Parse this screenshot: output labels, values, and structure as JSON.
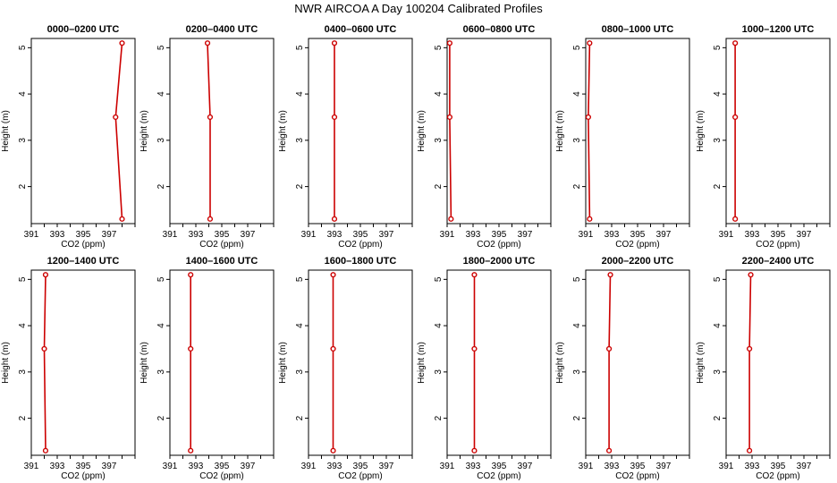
{
  "title": "NWR AIRCOA A  Day 100204  Calibrated Profiles",
  "chart_data": [
    {
      "type": "line",
      "title": "0000–0200 UTC",
      "xlabel": "CO2 (ppm)",
      "ylabel": "Height (m)",
      "xlim": [
        391,
        399
      ],
      "ylim": [
        1.2,
        5.2
      ],
      "x_ticks": [
        "391",
        "393",
        "395",
        "397"
      ],
      "y_ticks": [
        "2",
        "3",
        "4",
        "5"
      ],
      "series": [
        {
          "x": [
            398,
            397.5,
            398
          ],
          "y": [
            1.3,
            3.5,
            5.1
          ]
        }
      ]
    },
    {
      "type": "line",
      "title": "0200–0400 UTC",
      "xlabel": "CO2 (ppm)",
      "ylabel": "Height (m)",
      "xlim": [
        391,
        399
      ],
      "ylim": [
        1.2,
        5.2
      ],
      "x_ticks": [
        "391",
        "393",
        "395",
        "397"
      ],
      "y_ticks": [
        "2",
        "3",
        "4",
        "5"
      ],
      "series": [
        {
          "x": [
            394.1,
            394.1,
            393.9
          ],
          "y": [
            1.3,
            3.5,
            5.1
          ]
        }
      ]
    },
    {
      "type": "line",
      "title": "0400–0600 UTC",
      "xlabel": "CO2 (ppm)",
      "ylabel": "Height (m)",
      "xlim": [
        391,
        399
      ],
      "ylim": [
        1.2,
        5.2
      ],
      "x_ticks": [
        "391",
        "393",
        "395",
        "397"
      ],
      "y_ticks": [
        "2",
        "3",
        "4",
        "5"
      ],
      "series": [
        {
          "x": [
            393,
            393,
            393
          ],
          "y": [
            1.3,
            3.5,
            5.1
          ]
        }
      ]
    },
    {
      "type": "line",
      "title": "0600–0800 UTC",
      "xlabel": "CO2 (ppm)",
      "ylabel": "Height (m)",
      "xlim": [
        391,
        399
      ],
      "ylim": [
        1.2,
        5.2
      ],
      "x_ticks": [
        "391",
        "393",
        "395",
        "397"
      ],
      "y_ticks": [
        "2",
        "3",
        "4",
        "5"
      ],
      "series": [
        {
          "x": [
            391.3,
            391.2,
            391.2
          ],
          "y": [
            1.3,
            3.5,
            5.1
          ]
        }
      ]
    },
    {
      "type": "line",
      "title": "0800–1000 UTC",
      "xlabel": "CO2 (ppm)",
      "ylabel": "Height (m)",
      "xlim": [
        391,
        399
      ],
      "ylim": [
        1.2,
        5.2
      ],
      "x_ticks": [
        "391",
        "393",
        "395",
        "397"
      ],
      "y_ticks": [
        "2",
        "3",
        "4",
        "5"
      ],
      "series": [
        {
          "x": [
            391.3,
            391.2,
            391.3
          ],
          "y": [
            1.3,
            3.5,
            5.1
          ]
        }
      ]
    },
    {
      "type": "line",
      "title": "1000–1200 UTC",
      "xlabel": "CO2 (ppm)",
      "ylabel": "Height (m)",
      "xlim": [
        391,
        399
      ],
      "ylim": [
        1.2,
        5.2
      ],
      "x_ticks": [
        "391",
        "393",
        "395",
        "397"
      ],
      "y_ticks": [
        "2",
        "3",
        "4",
        "5"
      ],
      "series": [
        {
          "x": [
            391.7,
            391.7,
            391.7
          ],
          "y": [
            1.3,
            3.5,
            5.1
          ]
        }
      ]
    },
    {
      "type": "line",
      "title": "1200–1400 UTC",
      "xlabel": "CO2 (ppm)",
      "ylabel": "Height (m)",
      "xlim": [
        391,
        399
      ],
      "ylim": [
        1.2,
        5.2
      ],
      "x_ticks": [
        "391",
        "393",
        "395",
        "397"
      ],
      "y_ticks": [
        "2",
        "3",
        "4",
        "5"
      ],
      "series": [
        {
          "x": [
            392.1,
            392,
            392.1
          ],
          "y": [
            1.3,
            3.5,
            5.1
          ]
        }
      ]
    },
    {
      "type": "line",
      "title": "1400–1600 UTC",
      "xlabel": "CO2 (ppm)",
      "ylabel": "Height (m)",
      "xlim": [
        391,
        399
      ],
      "ylim": [
        1.2,
        5.2
      ],
      "x_ticks": [
        "391",
        "393",
        "395",
        "397"
      ],
      "y_ticks": [
        "2",
        "3",
        "4",
        "5"
      ],
      "series": [
        {
          "x": [
            392.6,
            392.6,
            392.6
          ],
          "y": [
            1.3,
            3.5,
            5.1
          ]
        }
      ]
    },
    {
      "type": "line",
      "title": "1600–1800 UTC",
      "xlabel": "CO2 (ppm)",
      "ylabel": "Height (m)",
      "xlim": [
        391,
        399
      ],
      "ylim": [
        1.2,
        5.2
      ],
      "x_ticks": [
        "391",
        "393",
        "395",
        "397"
      ],
      "y_ticks": [
        "2",
        "3",
        "4",
        "5"
      ],
      "series": [
        {
          "x": [
            392.9,
            392.9,
            392.9
          ],
          "y": [
            1.3,
            3.5,
            5.1
          ]
        }
      ]
    },
    {
      "type": "line",
      "title": "1800–2000 UTC",
      "xlabel": "CO2 (ppm)",
      "ylabel": "Height (m)",
      "xlim": [
        391,
        399
      ],
      "ylim": [
        1.2,
        5.2
      ],
      "x_ticks": [
        "391",
        "393",
        "395",
        "397"
      ],
      "y_ticks": [
        "2",
        "3",
        "4",
        "5"
      ],
      "series": [
        {
          "x": [
            393.1,
            393.1,
            393.1
          ],
          "y": [
            1.3,
            3.5,
            5.1
          ]
        }
      ]
    },
    {
      "type": "line",
      "title": "2000–2200 UTC",
      "xlabel": "CO2 (ppm)",
      "ylabel": "Height (m)",
      "xlim": [
        391,
        399
      ],
      "ylim": [
        1.2,
        5.2
      ],
      "x_ticks": [
        "391",
        "393",
        "395",
        "397"
      ],
      "y_ticks": [
        "2",
        "3",
        "4",
        "5"
      ],
      "series": [
        {
          "x": [
            392.8,
            392.8,
            392.9
          ],
          "y": [
            1.3,
            3.5,
            5.1
          ]
        }
      ]
    },
    {
      "type": "line",
      "title": "2200–2400 UTC",
      "xlabel": "CO2 (ppm)",
      "ylabel": "Height (m)",
      "xlim": [
        391,
        399
      ],
      "ylim": [
        1.2,
        5.2
      ],
      "x_ticks": [
        "391",
        "393",
        "395",
        "397"
      ],
      "y_ticks": [
        "2",
        "3",
        "4",
        "5"
      ],
      "series": [
        {
          "x": [
            392.8,
            392.8,
            392.9
          ],
          "y": [
            1.3,
            3.5,
            5.1
          ]
        }
      ]
    }
  ]
}
